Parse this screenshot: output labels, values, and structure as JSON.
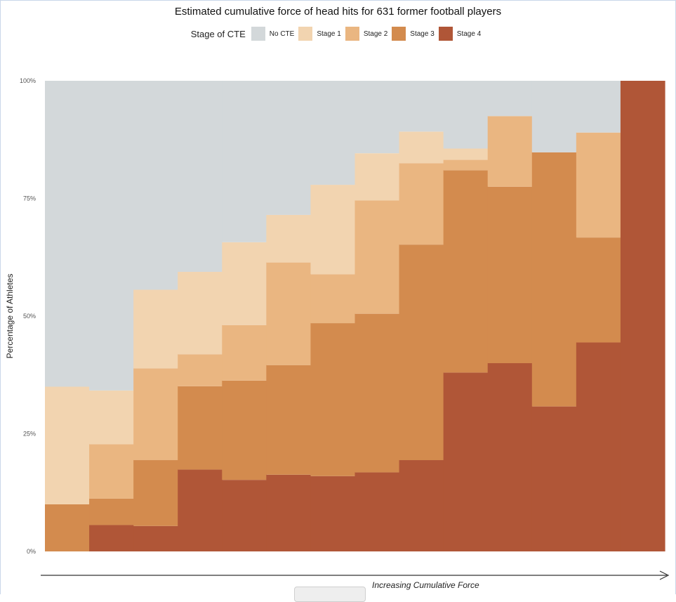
{
  "chart_data": {
    "type": "bar",
    "title": "Estimated cumulative force of head hits for 631 former football players",
    "xlabel": "Increasing Cumulative Force",
    "ylabel": "Percentage of Athletes",
    "ylim": [
      0,
      100
    ],
    "yticks": [
      "0%",
      "25%",
      "50%",
      "75%",
      "100%"
    ],
    "y_tick_values": [
      0,
      25,
      50,
      75,
      100
    ],
    "legend_title": "Stage of CTE",
    "legend_position": "top",
    "bins": 14,
    "series": [
      {
        "name": "Stage 4",
        "color": "#b05637",
        "values": [
          0,
          5.6,
          5.4,
          17.4,
          15.2,
          16.3,
          16.0,
          16.8,
          19.4,
          38.0,
          40.0,
          30.8,
          44.4,
          100
        ]
      },
      {
        "name": "Stage 3",
        "color": "#d38b4e",
        "values": [
          10.0,
          5.6,
          14.0,
          17.7,
          21.1,
          23.3,
          32.5,
          33.7,
          45.8,
          43.0,
          37.5,
          54.0,
          22.3,
          0
        ]
      },
      {
        "name": "Stage 2",
        "color": "#eab681",
        "values": [
          0,
          11.6,
          19.5,
          6.8,
          11.8,
          21.8,
          10.4,
          24.1,
          17.3,
          2.2,
          15.0,
          0,
          22.3,
          0
        ]
      },
      {
        "name": "Stage 1",
        "color": "#f2d4b0",
        "values": [
          25.0,
          11.4,
          16.7,
          17.5,
          17.6,
          10.1,
          19.0,
          10.0,
          6.7,
          2.4,
          0,
          0,
          0,
          0
        ]
      },
      {
        "name": "No CTE",
        "color": "#d3d8da",
        "values": [
          65.0,
          65.8,
          44.4,
          40.6,
          34.3,
          28.5,
          22.1,
          15.4,
          10.8,
          14.4,
          7.5,
          15.2,
          11.0,
          0
        ]
      }
    ]
  },
  "legend_order": [
    "No CTE",
    "Stage 1",
    "Stage 2",
    "Stage 3",
    "Stage 4"
  ],
  "ui": {
    "axis_color": "#333333"
  }
}
